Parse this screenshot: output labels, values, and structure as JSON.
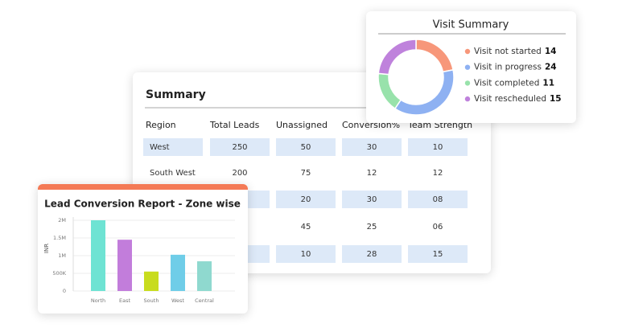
{
  "summary": {
    "title": "Summary",
    "columns": [
      "Region",
      "Total Leads",
      "Unassigned",
      "Conversion%",
      "Team Strength"
    ],
    "rows": [
      [
        "West",
        "250",
        "50",
        "30",
        "10"
      ],
      [
        "South West",
        "200",
        "75",
        "12",
        "12"
      ],
      [
        null,
        null,
        "20",
        "30",
        "08"
      ],
      [
        null,
        null,
        "45",
        "25",
        "06"
      ],
      [
        null,
        null,
        "10",
        "28",
        "15"
      ]
    ]
  },
  "chart_data": [
    {
      "type": "pie",
      "title": "Visit Summary",
      "donut": true,
      "categories": [
        "Visit not started",
        "Visit in progress",
        "Visit completed",
        "Visit rescheduled"
      ],
      "values": [
        14,
        24,
        11,
        15
      ],
      "colors": [
        "#f7977a",
        "#8eb1f2",
        "#98e2ab",
        "#bf82dc"
      ]
    },
    {
      "type": "bar",
      "title": "Lead Conversion Report - Zone wise",
      "ylabel": "INR",
      "categories": [
        "North",
        "East",
        "South",
        "West",
        "Central"
      ],
      "values": [
        2000000,
        1450000,
        550000,
        1025000,
        840000
      ],
      "colors": [
        "#6ee3d3",
        "#c27ddb",
        "#c8dc1e",
        "#6fcde8",
        "#8fd9cf"
      ],
      "ylim": [
        0,
        2000000
      ],
      "yticks": [
        0,
        {
          "value": 500000,
          "label": "500K"
        },
        {
          "value": 1000000,
          "label": "1M"
        },
        {
          "value": 1500000,
          "label": "1.5M"
        },
        {
          "value": 2000000,
          "label": "2M"
        }
      ],
      "grid": true
    }
  ]
}
